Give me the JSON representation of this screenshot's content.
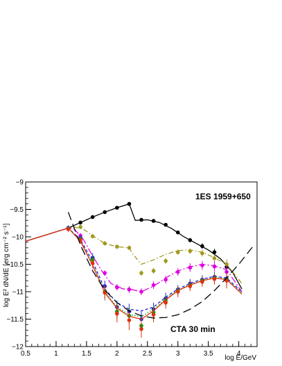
{
  "chart_data": {
    "type": "line",
    "xlabel": "log E/GeV",
    "ylabel": "log E² dN/dE [erg cm⁻² s⁻¹]",
    "xlim": [
      0.5,
      4.3
    ],
    "ylim": [
      -12,
      -9
    ],
    "x_ticks": [
      0.5,
      1,
      1.5,
      2,
      2.5,
      3,
      3.5,
      4
    ],
    "x_tick_labels": [
      "0.5",
      "1",
      "1.5",
      "2",
      "2.5",
      "3",
      "3.5",
      "4"
    ],
    "y_ticks": [
      -9,
      -9.5,
      -10,
      -10.5,
      -11,
      -11.5,
      -12
    ],
    "y_tick_labels": [
      "−9",
      "−9.5",
      "−10",
      "−10.5",
      "−11",
      "−11.5",
      "−12"
    ],
    "grid": false,
    "annotations": [
      "1ES 1959+650",
      "CTA 30 min"
    ],
    "series": [
      {
        "color": "#000000",
        "style": "solid",
        "line": {
          "x": [
            0.5,
            1.2,
            1.4,
            1.6,
            1.8,
            2.0,
            2.2,
            2.25,
            2.3,
            2.5,
            2.7,
            2.9,
            3.1,
            3.3,
            3.5,
            3.7,
            3.9,
            4.05
          ],
          "y": [
            -10.08,
            -9.84,
            -9.74,
            -9.64,
            -9.55,
            -9.47,
            -9.4,
            -9.55,
            -9.7,
            -9.69,
            -9.74,
            -9.85,
            -10.0,
            -10.12,
            -10.24,
            -10.4,
            -10.65,
            -10.95
          ]
        },
        "points": {
          "x": [
            1.2,
            1.4,
            1.6,
            1.8,
            2.0,
            2.2,
            2.4,
            2.6,
            2.8,
            3.0,
            3.2,
            3.4,
            3.6,
            3.8
          ],
          "y": [
            -9.84,
            -9.74,
            -9.64,
            -9.55,
            -9.47,
            -9.4,
            -9.69,
            -9.71,
            -9.78,
            -9.92,
            -10.06,
            -10.17,
            -10.28,
            -10.55
          ],
          "err": [
            0.03,
            0.03,
            0.03,
            0.03,
            0.03,
            0.03,
            0.03,
            0.03,
            0.03,
            0.03,
            0.04,
            0.05,
            0.06,
            0.08
          ]
        }
      },
      {
        "color": "#a09a1e",
        "style": "dashdot",
        "line": {
          "x": [
            0.5,
            1.2,
            1.3,
            1.45,
            1.6,
            1.8,
            2.0,
            2.2,
            2.25,
            2.4,
            2.6,
            2.8,
            3.0,
            3.2,
            3.4,
            3.6,
            3.8,
            4.05
          ],
          "y": [
            -10.08,
            -9.84,
            -9.82,
            -9.86,
            -9.98,
            -10.12,
            -10.18,
            -10.2,
            -10.3,
            -10.5,
            -10.42,
            -10.32,
            -10.25,
            -10.24,
            -10.28,
            -10.38,
            -10.5,
            -10.85
          ]
        },
        "points": {
          "x": [
            1.2,
            1.4,
            1.6,
            1.8,
            2.0,
            2.2,
            2.4,
            2.6,
            2.8,
            3.0,
            3.2,
            3.4,
            3.6,
            3.8
          ],
          "y": [
            -9.84,
            -9.82,
            -9.99,
            -10.12,
            -10.18,
            -10.2,
            -10.66,
            -10.62,
            -10.44,
            -10.28,
            -10.26,
            -10.3,
            -10.39,
            -10.5
          ],
          "err": [
            0.04,
            0.04,
            0.04,
            0.04,
            0.04,
            0.04,
            0.05,
            0.05,
            0.05,
            0.05,
            0.05,
            0.06,
            0.07,
            0.09
          ]
        }
      },
      {
        "color": "#e000e0",
        "style": "longdashdot",
        "line": {
          "x": [
            0.5,
            1.2,
            1.3,
            1.45,
            1.6,
            1.75,
            1.9,
            2.1,
            2.2,
            2.4,
            2.6,
            2.8,
            3.0,
            3.2,
            3.4,
            3.6,
            3.8,
            4.05
          ],
          "y": [
            -10.08,
            -9.84,
            -9.86,
            -10.05,
            -10.35,
            -10.62,
            -10.85,
            -10.95,
            -10.95,
            -11.0,
            -10.9,
            -10.75,
            -10.62,
            -10.55,
            -10.5,
            -10.53,
            -10.6,
            -11.0
          ]
        },
        "points": {
          "x": [
            1.2,
            1.4,
            1.6,
            1.8,
            2.0,
            2.2,
            2.4,
            2.6,
            2.8,
            3.0,
            3.2,
            3.4,
            3.6,
            3.8
          ],
          "y": [
            -9.84,
            -9.98,
            -10.4,
            -10.66,
            -10.92,
            -10.96,
            -11.0,
            -10.88,
            -10.78,
            -10.64,
            -10.56,
            -10.52,
            -10.54,
            -10.64
          ],
          "err": [
            0.04,
            0.05,
            0.05,
            0.05,
            0.06,
            0.06,
            0.06,
            0.07,
            0.07,
            0.07,
            0.08,
            0.08,
            0.09,
            0.12
          ]
        }
      },
      {
        "color": "#1f1fe6",
        "style": "dashed",
        "line": {
          "x": [
            0.5,
            1.2,
            1.4,
            1.6,
            1.8,
            2.0,
            2.2,
            2.4,
            2.6,
            2.8,
            3.0,
            3.2,
            3.4,
            3.6,
            3.8,
            4.05
          ],
          "y": [
            -10.08,
            -9.84,
            -10.05,
            -10.45,
            -10.95,
            -11.2,
            -11.32,
            -11.35,
            -11.28,
            -11.1,
            -10.95,
            -10.85,
            -10.77,
            -10.72,
            -10.75,
            -11.0
          ]
        },
        "points": {
          "x": [
            1.2,
            1.4,
            1.6,
            1.8,
            2.0,
            2.2,
            2.4,
            2.6,
            2.8,
            3.0,
            3.2,
            3.4,
            3.6,
            3.8
          ],
          "y": [
            -9.84,
            -10.02,
            -10.38,
            -10.9,
            -11.28,
            -11.36,
            -11.5,
            -11.32,
            -11.12,
            -10.96,
            -10.85,
            -10.78,
            -10.73,
            -10.76
          ],
          "err": [
            0.05,
            0.06,
            0.08,
            0.1,
            0.12,
            0.14,
            0.14,
            0.12,
            0.1,
            0.08,
            0.08,
            0.08,
            0.09,
            0.12
          ]
        }
      },
      {
        "color": "#00a000",
        "style": "dotted",
        "line": {
          "x": [
            0.5,
            1.2,
            1.4,
            1.6,
            1.8,
            2.0,
            2.2,
            2.4,
            2.6,
            2.8,
            3.0,
            3.2,
            3.4,
            3.6,
            3.8,
            4.05
          ],
          "y": [
            -10.08,
            -9.84,
            -10.07,
            -10.5,
            -11.0,
            -11.28,
            -11.42,
            -11.45,
            -11.32,
            -11.13,
            -10.97,
            -10.87,
            -10.79,
            -10.74,
            -10.77,
            -11.02
          ]
        },
        "points": {
          "x": [
            1.2,
            1.4,
            1.6,
            1.8,
            2.0,
            2.2,
            2.4,
            2.6,
            2.8,
            3.0,
            3.2,
            3.4,
            3.6,
            3.8
          ],
          "y": [
            -9.85,
            -10.04,
            -10.42,
            -11.0,
            -11.36,
            -11.44,
            -11.62,
            -11.38,
            -11.16,
            -10.98,
            -10.88,
            -10.8,
            -10.75,
            -10.78
          ],
          "err": [
            0.05,
            0.06,
            0.09,
            0.12,
            0.14,
            0.16,
            0.15,
            0.13,
            0.1,
            0.09,
            0.08,
            0.08,
            0.1,
            0.13
          ]
        }
      },
      {
        "color": "#e03010",
        "style": "solid",
        "line": {
          "x": [
            0.5,
            1.2,
            1.4,
            1.6,
            1.8,
            2.0,
            2.2,
            2.4,
            2.6,
            2.8,
            3.0,
            3.2,
            3.4,
            3.6,
            3.8,
            4.05
          ],
          "y": [
            -10.08,
            -9.84,
            -10.08,
            -10.52,
            -11.02,
            -11.3,
            -11.45,
            -11.5,
            -11.35,
            -11.15,
            -10.98,
            -10.88,
            -10.8,
            -10.75,
            -10.78,
            -11.04
          ]
        },
        "points": {
          "x": [
            1.2,
            1.4,
            1.6,
            1.8,
            2.0,
            2.2,
            2.4,
            2.6,
            2.8,
            3.0,
            3.2,
            3.4,
            3.6,
            3.8
          ],
          "y": [
            -9.86,
            -10.06,
            -10.48,
            -11.02,
            -11.4,
            -11.52,
            -11.68,
            -11.42,
            -11.2,
            -11.0,
            -10.9,
            -10.82,
            -10.77,
            -10.8
          ],
          "err": [
            0.05,
            0.07,
            0.1,
            0.14,
            0.16,
            0.18,
            0.16,
            0.14,
            0.11,
            0.1,
            0.09,
            0.09,
            0.1,
            0.14
          ]
        }
      },
      {
        "color": "#000000",
        "style": "longdash",
        "name": "CTA 30 min",
        "line": {
          "x": [
            1.2,
            1.4,
            1.6,
            1.8,
            2.0,
            2.2,
            2.4,
            2.6,
            2.8,
            3.0,
            3.2,
            3.4,
            3.6,
            3.8,
            4.0,
            4.25
          ],
          "y": [
            -9.55,
            -10.15,
            -10.62,
            -10.97,
            -11.2,
            -11.35,
            -11.44,
            -11.48,
            -11.47,
            -11.42,
            -11.32,
            -11.18,
            -10.98,
            -10.75,
            -10.5,
            -10.15
          ]
        }
      }
    ]
  }
}
